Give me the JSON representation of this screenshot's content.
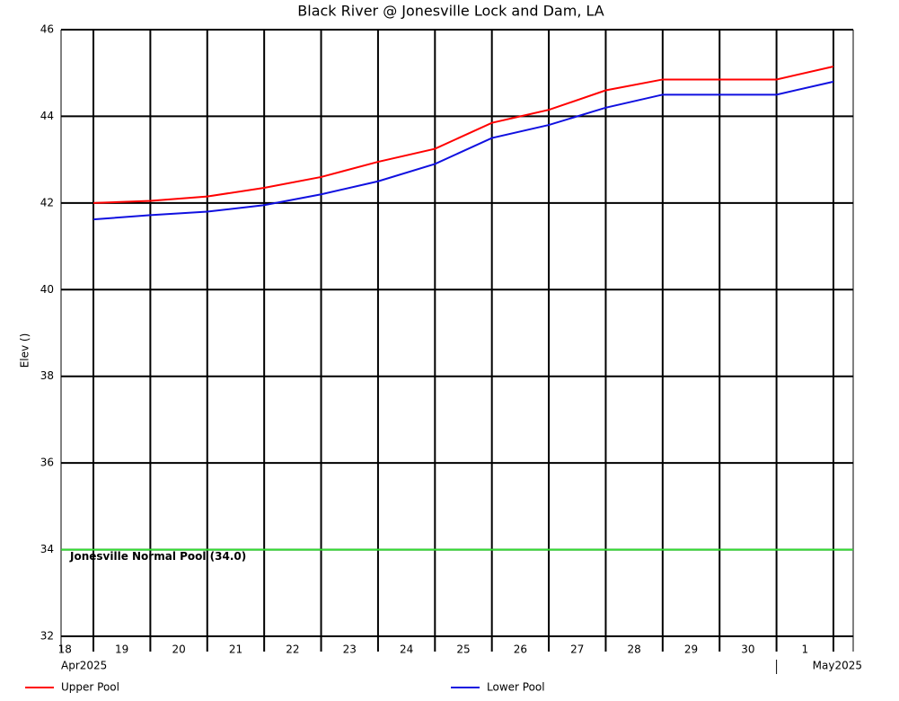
{
  "chart_data": {
    "type": "line",
    "title": "Black River @ Jonesville Lock and Dam, LA",
    "y_label": "Elev ()",
    "x": [
      "2025-04-19",
      "2025-04-20",
      "2025-04-21",
      "2025-04-22",
      "2025-04-23",
      "2025-04-24",
      "2025-04-25",
      "2025-04-26",
      "2025-04-27",
      "2025-04-28",
      "2025-04-29",
      "2025-04-30",
      "2025-05-01",
      "2025-05-02"
    ],
    "series": [
      {
        "name": "Upper Pool",
        "color": "#ff0000",
        "values": [
          42.0,
          42.05,
          42.15,
          42.35,
          42.6,
          42.95,
          43.25,
          43.85,
          44.15,
          44.6,
          44.85,
          44.85,
          44.85,
          45.15
        ]
      },
      {
        "name": "Lower Pool",
        "color": "#1010e0",
        "values": [
          41.62,
          41.72,
          41.8,
          41.95,
          42.2,
          42.5,
          42.9,
          43.5,
          43.8,
          44.2,
          44.5,
          44.5,
          44.5,
          44.8
        ]
      }
    ],
    "xlim": [
      "2025-04-18T10:22",
      "2025-05-02T08:20"
    ],
    "xticks": [
      {
        "value": "2025-04-18",
        "label": "18"
      },
      {
        "value": "2025-04-19",
        "label": "19"
      },
      {
        "value": "2025-04-20",
        "label": "20"
      },
      {
        "value": "2025-04-21",
        "label": "21"
      },
      {
        "value": "2025-04-22",
        "label": "22"
      },
      {
        "value": "2025-04-23",
        "label": "23"
      },
      {
        "value": "2025-04-24",
        "label": "24"
      },
      {
        "value": "2025-04-25",
        "label": "25"
      },
      {
        "value": "2025-04-26",
        "label": "26"
      },
      {
        "value": "2025-04-27",
        "label": "27"
      },
      {
        "value": "2025-04-28",
        "label": "28"
      },
      {
        "value": "2025-04-29",
        "label": "29"
      },
      {
        "value": "2025-04-30",
        "label": "30"
      },
      {
        "value": "2025-05-01",
        "label": "1"
      }
    ],
    "month_labels": [
      {
        "value": "2025-04-18",
        "label": "Apr2025"
      },
      {
        "value": "2025-05-01",
        "label": "May2025"
      }
    ],
    "ylim": [
      32,
      46
    ],
    "yticks": [
      32,
      34,
      36,
      38,
      40,
      42,
      44,
      46
    ],
    "grid": true,
    "reference_line": {
      "y": 34,
      "label": "Jonesville Normal Pool (34.0)",
      "color": "#33dd33"
    }
  }
}
